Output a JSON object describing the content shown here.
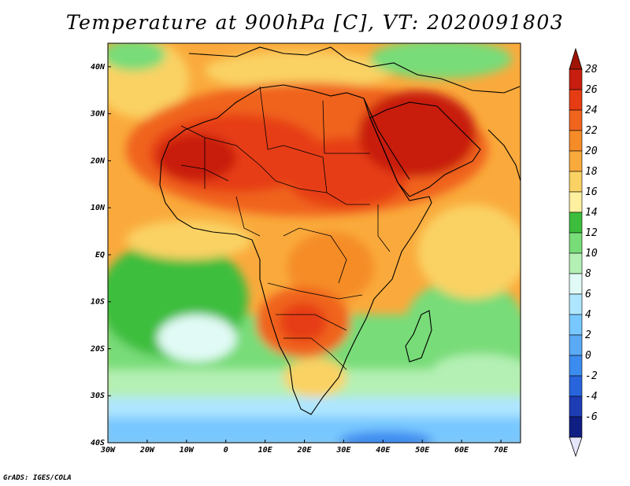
{
  "title": "Temperature at 900hPa [C], VT: 2020091803",
  "credit": "GrADS: IGES/COLA",
  "map": {
    "lon_range": [
      -30,
      75
    ],
    "lat_range": [
      -40,
      45
    ],
    "lon_ticks": [
      {
        "value": -30,
        "label": "30W"
      },
      {
        "value": -20,
        "label": "20W"
      },
      {
        "value": -10,
        "label": "10W"
      },
      {
        "value": 0,
        "label": "0"
      },
      {
        "value": 10,
        "label": "10E"
      },
      {
        "value": 20,
        "label": "20E"
      },
      {
        "value": 30,
        "label": "30E"
      },
      {
        "value": 40,
        "label": "40E"
      },
      {
        "value": 50,
        "label": "50E"
      },
      {
        "value": 60,
        "label": "60E"
      },
      {
        "value": 70,
        "label": "70E"
      }
    ],
    "lat_ticks": [
      {
        "value": 40,
        "label": "40N"
      },
      {
        "value": 30,
        "label": "30N"
      },
      {
        "value": 20,
        "label": "20N"
      },
      {
        "value": 10,
        "label": "10N"
      },
      {
        "value": 0,
        "label": "EQ"
      },
      {
        "value": -10,
        "label": "10S"
      },
      {
        "value": -20,
        "label": "20S"
      },
      {
        "value": -30,
        "label": "30S"
      },
      {
        "value": -40,
        "label": "40S"
      }
    ]
  },
  "colorbar": {
    "levels": [
      {
        "label": "28",
        "color": "#c81e0f"
      },
      {
        "label": "26",
        "color": "#e63c14"
      },
      {
        "label": "24",
        "color": "#f0641e"
      },
      {
        "label": "22",
        "color": "#f58c28"
      },
      {
        "label": "20",
        "color": "#faaa3c"
      },
      {
        "label": "18",
        "color": "#fad264"
      },
      {
        "label": "16",
        "color": "#fff0a0"
      },
      {
        "label": "14",
        "color": "#3cbe3c"
      },
      {
        "label": "12",
        "color": "#78dc78"
      },
      {
        "label": "10",
        "color": "#b4f0b4"
      },
      {
        "label": "8",
        "color": "#e1faf5"
      },
      {
        "label": "6",
        "color": "#afe6ff"
      },
      {
        "label": "4",
        "color": "#78c8ff"
      },
      {
        "label": "2",
        "color": "#5aaaf5"
      },
      {
        "label": "0",
        "color": "#3c8cf0"
      },
      {
        "label": "-2",
        "color": "#2864dc"
      },
      {
        "label": "-4",
        "color": "#1e3cb4"
      },
      {
        "label": "-6",
        "color": "#0f1e82"
      }
    ],
    "top_arrow_color": "#a01405",
    "bottom_arrow_color": "#e6e6fa"
  }
}
